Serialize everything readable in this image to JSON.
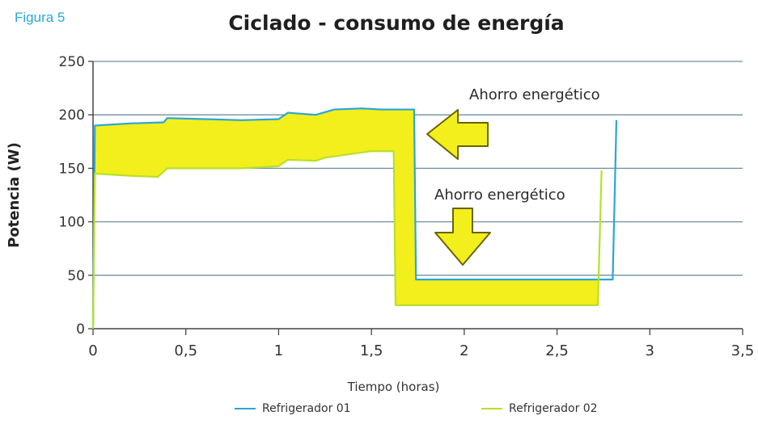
{
  "figure_label": "Figura 5",
  "chart_data": {
    "type": "line",
    "title": "Ciclado - consumo de energía",
    "xlabel": "Tiempo (horas)",
    "ylabel": "Potencia (W)",
    "xlim": [
      0,
      3.5
    ],
    "ylim": [
      0,
      250
    ],
    "x_ticks": [
      "0",
      "0,5",
      "1",
      "1,5",
      "2",
      "2,5",
      "3",
      "3,5"
    ],
    "y_ticks": [
      "0",
      "50",
      "100",
      "150",
      "200",
      "250"
    ],
    "grid": "horizontal",
    "legend_position": "bottom",
    "series": [
      {
        "name": "Refrigerador 01",
        "color": "#2aa6d9",
        "points": [
          [
            0,
            0
          ],
          [
            0.01,
            190
          ],
          [
            0.2,
            192
          ],
          [
            0.38,
            193
          ],
          [
            0.4,
            197
          ],
          [
            0.6,
            196
          ],
          [
            0.8,
            195
          ],
          [
            1.0,
            196
          ],
          [
            1.05,
            202
          ],
          [
            1.2,
            200
          ],
          [
            1.3,
            205
          ],
          [
            1.45,
            206
          ],
          [
            1.55,
            205
          ],
          [
            1.7,
            205
          ],
          [
            1.73,
            205
          ],
          [
            1.74,
            46
          ],
          [
            2.0,
            46
          ],
          [
            2.5,
            46
          ],
          [
            2.8,
            46
          ],
          [
            2.82,
            195
          ]
        ]
      },
      {
        "name": "Refrigerador 02",
        "color": "#b7e02a",
        "points": [
          [
            0,
            0
          ],
          [
            0.01,
            145
          ],
          [
            0.2,
            143
          ],
          [
            0.35,
            142
          ],
          [
            0.4,
            150
          ],
          [
            0.6,
            150
          ],
          [
            0.8,
            150
          ],
          [
            1.0,
            152
          ],
          [
            1.05,
            158
          ],
          [
            1.2,
            157
          ],
          [
            1.25,
            160
          ],
          [
            1.5,
            166
          ],
          [
            1.62,
            166
          ],
          [
            1.63,
            22
          ],
          [
            2.0,
            22
          ],
          [
            2.5,
            22
          ],
          [
            2.72,
            22
          ],
          [
            2.74,
            148
          ]
        ]
      }
    ],
    "band": {
      "color": "#f2ef1c",
      "upper": [
        [
          0.01,
          190
        ],
        [
          0.2,
          192
        ],
        [
          0.38,
          193
        ],
        [
          0.4,
          197
        ],
        [
          0.6,
          196
        ],
        [
          0.8,
          195
        ],
        [
          1.0,
          196
        ],
        [
          1.05,
          202
        ],
        [
          1.2,
          200
        ],
        [
          1.3,
          205
        ],
        [
          1.45,
          206
        ],
        [
          1.55,
          205
        ],
        [
          1.73,
          205
        ],
        [
          1.74,
          46
        ],
        [
          2.0,
          46
        ],
        [
          2.5,
          46
        ],
        [
          2.72,
          46
        ]
      ],
      "lower": [
        [
          0.01,
          145
        ],
        [
          0.2,
          143
        ],
        [
          0.35,
          142
        ],
        [
          0.4,
          150
        ],
        [
          0.6,
          150
        ],
        [
          0.8,
          150
        ],
        [
          1.0,
          152
        ],
        [
          1.05,
          158
        ],
        [
          1.2,
          157
        ],
        [
          1.25,
          160
        ],
        [
          1.5,
          166
        ],
        [
          1.62,
          166
        ],
        [
          1.63,
          22
        ],
        [
          2.0,
          22
        ],
        [
          2.5,
          22
        ],
        [
          2.72,
          22
        ]
      ]
    },
    "annotations": [
      {
        "text": "Ahorro energético",
        "arrow": "left",
        "arrow_color": "#f2ef1c"
      },
      {
        "text": "Ahorro energético",
        "arrow": "down",
        "arrow_color": "#f2ef1c"
      }
    ]
  }
}
